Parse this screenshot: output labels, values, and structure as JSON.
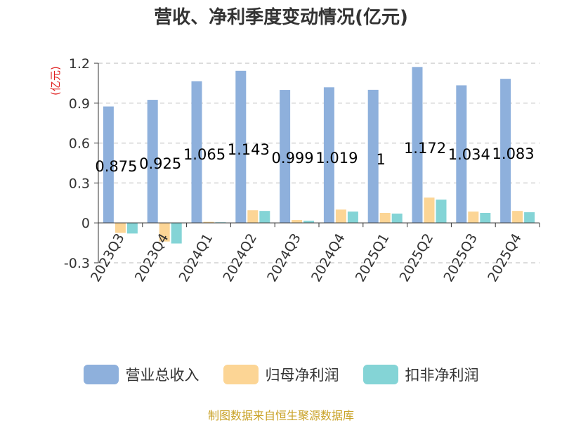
{
  "title": "营收、净利季度变动情况(亿元)",
  "unit_label": "(亿元)",
  "source_note": "制图数据来自恒生聚源数据库",
  "legend": [
    {
      "label": "营业总收入",
      "color": "#8eb0dc"
    },
    {
      "label": "归母净利润",
      "color": "#fcd595"
    },
    {
      "label": "扣非净利润",
      "color": "#84d4d6"
    }
  ],
  "chart_data": {
    "type": "bar",
    "categories": [
      "2023Q3",
      "2023Q4",
      "2024Q1",
      "2024Q2",
      "2024Q3",
      "2024Q4",
      "2025Q1",
      "2025Q2",
      "2025Q3",
      "2025Q4"
    ],
    "series": [
      {
        "name": "营业总收入",
        "color": "#8eb0dc",
        "values": [
          0.875,
          0.925,
          1.065,
          1.143,
          0.999,
          1.019,
          1,
          1.172,
          1.034,
          1.083
        ]
      },
      {
        "name": "归母净利润",
        "color": "#fcd595",
        "values": [
          -0.075,
          -0.14,
          0.008,
          0.095,
          0.022,
          0.1,
          0.075,
          0.19,
          0.085,
          0.09
        ]
      },
      {
        "name": "扣非净利润",
        "color": "#84d4d6",
        "values": [
          -0.08,
          -0.155,
          0.005,
          0.09,
          0.016,
          0.085,
          0.07,
          0.175,
          0.075,
          0.08
        ]
      }
    ],
    "data_labels": [
      "0.875",
      "0.925",
      "1.065",
      "1.143",
      "0.999",
      "1.019",
      "1",
      "1.172",
      "1.034",
      "1.083"
    ],
    "yticks": [
      "1.2",
      "0.9",
      "0.6",
      "0.3",
      "0",
      "-0.3"
    ],
    "ylim": [
      -0.3,
      1.2
    ],
    "grid": true,
    "legend_position": "bottom"
  }
}
